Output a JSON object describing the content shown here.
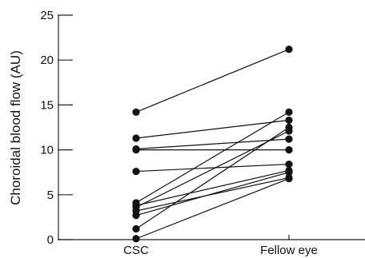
{
  "chart_data": {
    "type": "line",
    "xlabel": "",
    "ylabel": "Choroidal blood flow (AU)",
    "categories": [
      "CSC",
      "Fellow eye"
    ],
    "ylim": [
      0,
      25
    ],
    "yticks": [
      0,
      5,
      10,
      15,
      20,
      25
    ],
    "grid": false,
    "legend": "none",
    "pairs": [
      {
        "csc": 14.2,
        "fellow": 21.2
      },
      {
        "csc": 11.3,
        "fellow": 13.3
      },
      {
        "csc": 10.1,
        "fellow": 11.2
      },
      {
        "csc": 10.0,
        "fellow": 10.0
      },
      {
        "csc": 7.6,
        "fellow": 8.4
      },
      {
        "csc": 4.1,
        "fellow": 14.2
      },
      {
        "csc": 3.8,
        "fellow": 7.7
      },
      {
        "csc": 3.6,
        "fellow": 12.1
      },
      {
        "csc": 3.2,
        "fellow": 6.9
      },
      {
        "csc": 2.7,
        "fellow": 7.5
      },
      {
        "csc": 1.2,
        "fellow": 12.5
      },
      {
        "csc": 0.1,
        "fellow": 6.8
      }
    ]
  }
}
